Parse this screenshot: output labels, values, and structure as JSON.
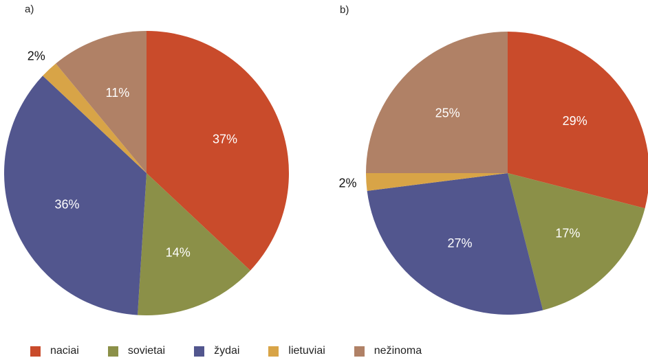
{
  "chart_data": [
    {
      "type": "pie",
      "panel_label": "a)",
      "slices": [
        {
          "category": "naciai",
          "value": 37,
          "label": "37%"
        },
        {
          "category": "sovietai",
          "value": 14,
          "label": "14%"
        },
        {
          "category": "žydai",
          "value": 36,
          "label": "36%"
        },
        {
          "category": "lietuviai",
          "value": 2,
          "label": "2%"
        },
        {
          "category": "nežinoma",
          "value": 11,
          "label": "11%"
        }
      ]
    },
    {
      "type": "pie",
      "panel_label": "b)",
      "slices": [
        {
          "category": "naciai",
          "value": 29,
          "label": "29%"
        },
        {
          "category": "sovietai",
          "value": 17,
          "label": "17%"
        },
        {
          "category": "žydai",
          "value": 27,
          "label": "27%"
        },
        {
          "category": "lietuviai",
          "value": 2,
          "label": "2%"
        },
        {
          "category": "nežinoma",
          "value": 25,
          "label": "25%"
        }
      ]
    }
  ],
  "legend": {
    "placement": "bottom",
    "items": [
      {
        "label": "naciai",
        "color": "#C94B2B"
      },
      {
        "label": "sovietai",
        "color": "#8B9048"
      },
      {
        "label": "žydai",
        "color": "#52568E"
      },
      {
        "label": "lietuviai",
        "color": "#D8A447"
      },
      {
        "label": "nežinoma",
        "color": "#B08166"
      }
    ]
  }
}
